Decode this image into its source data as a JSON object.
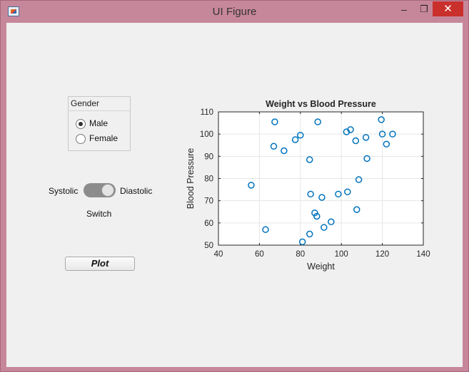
{
  "window": {
    "title": "UI Figure",
    "min_glyph": "–",
    "max_glyph": "❐",
    "close_glyph": "✕"
  },
  "controls": {
    "gender": {
      "title": "Gender",
      "options": [
        {
          "label": "Male",
          "selected": true
        },
        {
          "label": "Female",
          "selected": false
        }
      ]
    },
    "switch": {
      "left_label": "Systolic",
      "right_label": "Diastolic",
      "caption": "Switch",
      "state": "Diastolic"
    },
    "plot_button": "Plot"
  },
  "chart_data": {
    "type": "scatter",
    "title": "Weight vs Blood Pressure",
    "xlabel": "Weight",
    "ylabel": "Blood Pressure",
    "xlim": [
      40,
      140
    ],
    "ylim": [
      50,
      110
    ],
    "xticks": [
      40,
      60,
      80,
      100,
      120,
      140
    ],
    "yticks": [
      50,
      60,
      70,
      80,
      90,
      100,
      110
    ],
    "grid": true,
    "marker_color": "#0072bd",
    "points": [
      {
        "x": 56,
        "y": 77
      },
      {
        "x": 63,
        "y": 57
      },
      {
        "x": 67,
        "y": 94.5
      },
      {
        "x": 67.5,
        "y": 105.5
      },
      {
        "x": 72,
        "y": 92.5
      },
      {
        "x": 77.5,
        "y": 97.5
      },
      {
        "x": 80,
        "y": 99.5
      },
      {
        "x": 81,
        "y": 51.5
      },
      {
        "x": 84.5,
        "y": 88.5
      },
      {
        "x": 85,
        "y": 73
      },
      {
        "x": 84.5,
        "y": 55
      },
      {
        "x": 87,
        "y": 64.5
      },
      {
        "x": 88,
        "y": 63
      },
      {
        "x": 88.5,
        "y": 105.5
      },
      {
        "x": 90.5,
        "y": 71.5
      },
      {
        "x": 91.5,
        "y": 58
      },
      {
        "x": 95,
        "y": 60.5
      },
      {
        "x": 98.5,
        "y": 73
      },
      {
        "x": 102.5,
        "y": 101
      },
      {
        "x": 103,
        "y": 74
      },
      {
        "x": 104.5,
        "y": 102
      },
      {
        "x": 107,
        "y": 97
      },
      {
        "x": 107.5,
        "y": 66
      },
      {
        "x": 108.5,
        "y": 79.5
      },
      {
        "x": 112,
        "y": 98.5
      },
      {
        "x": 112.5,
        "y": 89
      },
      {
        "x": 119.5,
        "y": 106.5
      },
      {
        "x": 120,
        "y": 100
      },
      {
        "x": 122,
        "y": 95.5
      },
      {
        "x": 125,
        "y": 100
      }
    ]
  }
}
